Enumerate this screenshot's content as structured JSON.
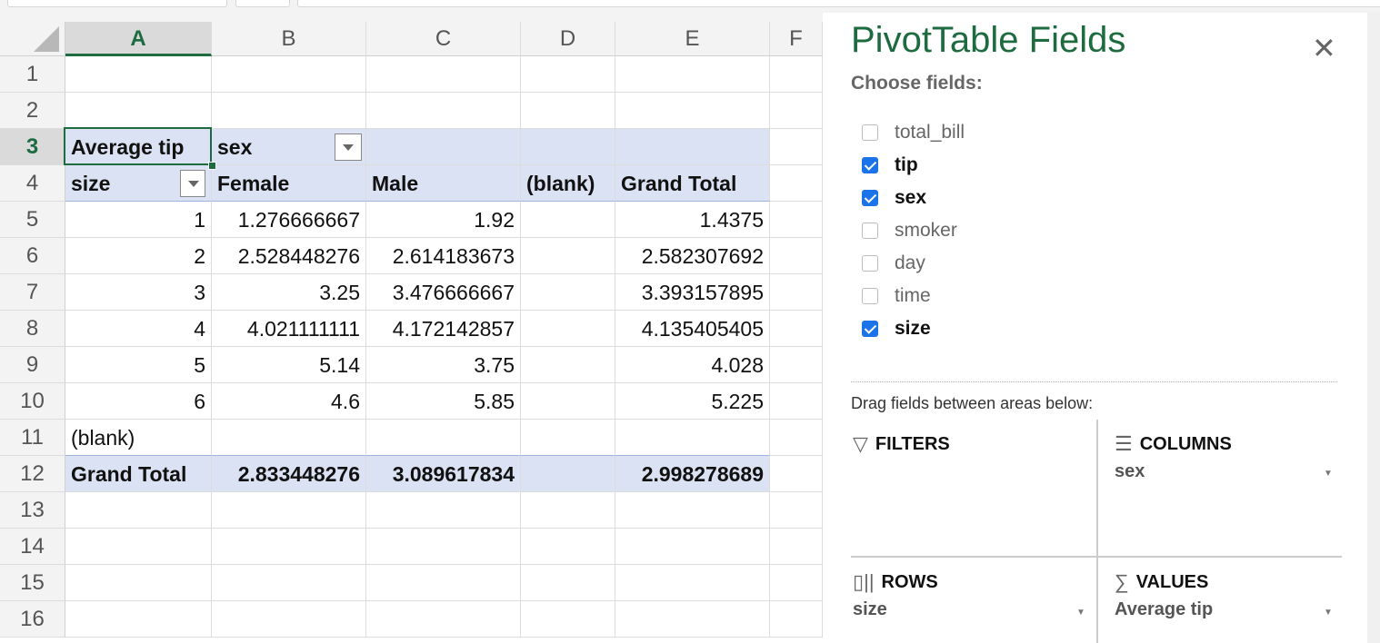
{
  "spreadsheet": {
    "columns": [
      "A",
      "B",
      "C",
      "D",
      "E",
      "F"
    ],
    "selected_column": "A",
    "selected_row": "3",
    "rows": [
      "1",
      "2",
      "3",
      "4",
      "5",
      "6",
      "7",
      "8",
      "9",
      "10",
      "11",
      "12",
      "13",
      "14",
      "15",
      "16"
    ],
    "pivot": {
      "value_label": "Average tip",
      "column_field": "sex",
      "row_field": "size",
      "column_headers": [
        "Female",
        "Male",
        "(blank)",
        "Grand Total"
      ],
      "body": [
        {
          "label": "1",
          "values": [
            "1.276666667",
            "1.92",
            "",
            "1.4375"
          ]
        },
        {
          "label": "2",
          "values": [
            "2.528448276",
            "2.614183673",
            "",
            "2.582307692"
          ]
        },
        {
          "label": "3",
          "values": [
            "3.25",
            "3.476666667",
            "",
            "3.393157895"
          ]
        },
        {
          "label": "4",
          "values": [
            "4.021111111",
            "4.172142857",
            "",
            "4.135405405"
          ]
        },
        {
          "label": "5",
          "values": [
            "5.14",
            "3.75",
            "",
            "4.028"
          ]
        },
        {
          "label": "6",
          "values": [
            "4.6",
            "5.85",
            "",
            "5.225"
          ]
        }
      ],
      "blank_row_label": "(blank)",
      "grand_total": {
        "label": "Grand Total",
        "values": [
          "2.833448276",
          "3.089617834",
          "",
          "2.998278689"
        ]
      }
    }
  },
  "panel": {
    "title": "PivotTable Fields",
    "choose_label": "Choose fields:",
    "fields": [
      {
        "name": "total_bill",
        "checked": false
      },
      {
        "name": "tip",
        "checked": true
      },
      {
        "name": "sex",
        "checked": true
      },
      {
        "name": "smoker",
        "checked": false
      },
      {
        "name": "day",
        "checked": false
      },
      {
        "name": "time",
        "checked": false
      },
      {
        "name": "size",
        "checked": true
      }
    ],
    "drag_label": "Drag fields between areas below:",
    "areas": {
      "filters": {
        "label": "FILTERS",
        "value": ""
      },
      "columns": {
        "label": "COLUMNS",
        "value": "sex"
      },
      "rows": {
        "label": "ROWS",
        "value": "size"
      },
      "values": {
        "label": "VALUES",
        "value": "Average tip"
      }
    },
    "accent": "#1e6b40",
    "check_color": "#1a73e8"
  }
}
